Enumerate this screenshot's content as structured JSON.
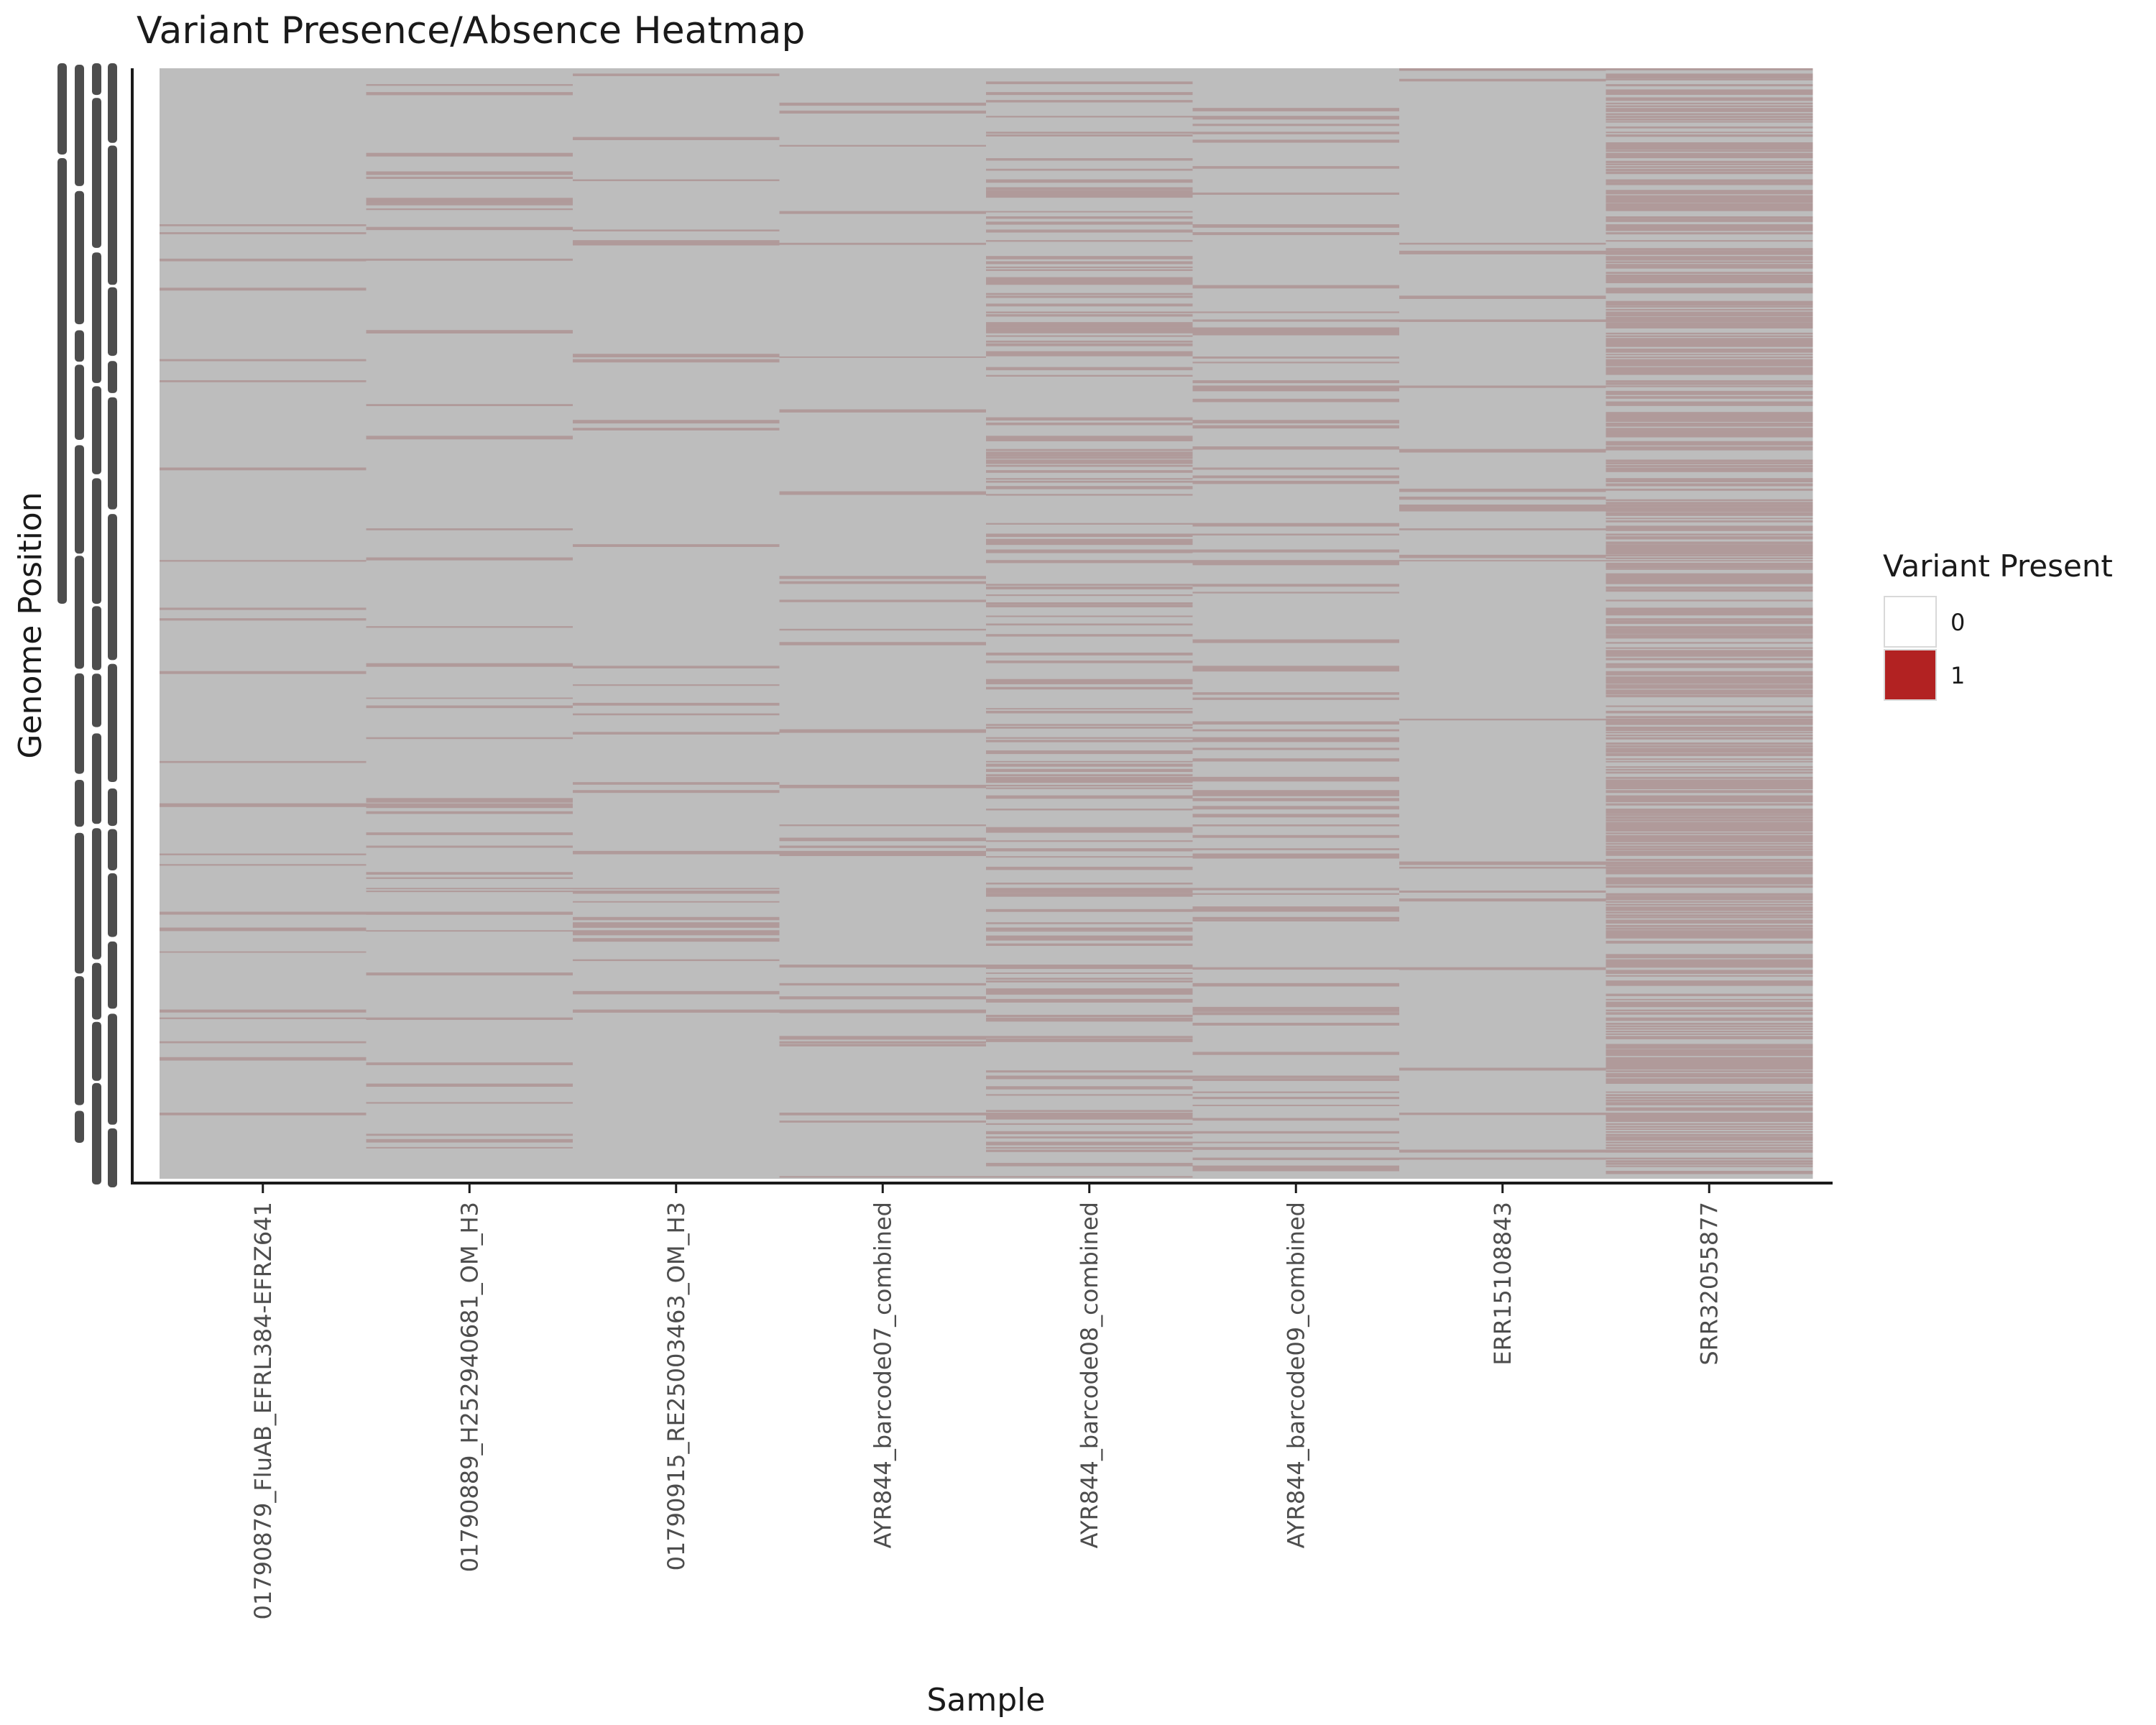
{
  "chart_data": {
    "type": "heatmap",
    "title": "Variant Presence/Absence Heatmap",
    "xlabel": "Sample",
    "ylabel": "Genome Position",
    "categories": [
      "01790879_FluAB_EFRL384-EFRZ641",
      "01790889_H252940681_OM_H3",
      "01790915_RE25003463_OM_H3",
      "AYR844_barcode07_combined",
      "AYR844_barcode08_combined",
      "AYR844_barcode09_combined",
      "ERR15108843",
      "SRR32055877"
    ],
    "variant_frequency": [
      0.06,
      0.08,
      0.06,
      0.05,
      0.35,
      0.22,
      0.06,
      0.78
    ],
    "value_levels": [
      "0",
      "1"
    ],
    "legend": {
      "title": "Variant Present",
      "position": "right",
      "entries": [
        {
          "label": "0",
          "color": "#ffffff"
        },
        {
          "label": "1",
          "color": "#b22222"
        }
      ]
    },
    "grid": false
  },
  "colors": {
    "absent": "#bdbdbd",
    "present": "#b22222",
    "axis": "#1a1a1a",
    "y_tick": "#4d4d4d"
  }
}
